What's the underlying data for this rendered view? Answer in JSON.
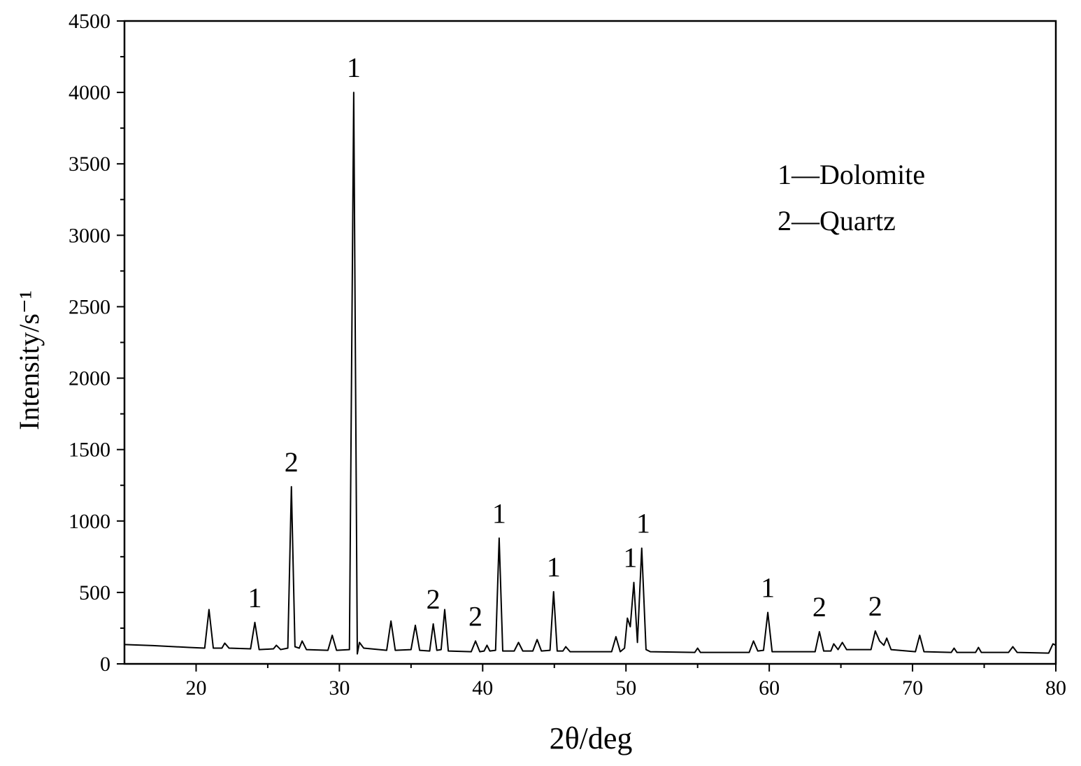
{
  "chart_data": {
    "type": "line",
    "x_label": "2θ/deg",
    "y_label": "Intensity/s⁻¹",
    "x": [
      15,
      17,
      19.5,
      20.6,
      20.9,
      21.2,
      21.8,
      22.0,
      22.3,
      23.8,
      24.1,
      24.4,
      25.4,
      25.6,
      25.9,
      26.4,
      26.65,
      26.9,
      27.2,
      27.4,
      27.7,
      29.2,
      29.5,
      29.8,
      30.7,
      31.0,
      31.25,
      31.4,
      31.7,
      33.3,
      33.6,
      33.9,
      35.0,
      35.3,
      35.6,
      36.3,
      36.55,
      36.8,
      37.1,
      37.35,
      37.6,
      39.2,
      39.5,
      39.8,
      40.1,
      40.3,
      40.5,
      40.9,
      41.15,
      41.4,
      42.2,
      42.5,
      42.8,
      43.5,
      43.8,
      44.1,
      44.7,
      44.95,
      45.2,
      45.6,
      45.8,
      46.1,
      49.0,
      49.3,
      49.6,
      49.9,
      50.1,
      50.3,
      50.55,
      50.8,
      51.1,
      51.4,
      51.7,
      54.8,
      55.0,
      55.2,
      58.6,
      58.9,
      59.2,
      59.6,
      59.9,
      60.2,
      63.2,
      63.5,
      63.8,
      64.3,
      64.5,
      64.8,
      65.1,
      65.4,
      67.1,
      67.4,
      67.7,
      68.0,
      68.2,
      68.5,
      70.2,
      70.5,
      70.8,
      72.7,
      72.9,
      73.1,
      74.4,
      74.6,
      74.8,
      76.7,
      77.0,
      77.3,
      79.5,
      79.8,
      80
    ],
    "series": [
      {
        "name": "XRD pattern",
        "color": "#000000",
        "values": [
          135,
          128,
          115,
          110,
          380,
          110,
          110,
          145,
          110,
          105,
          290,
          100,
          105,
          130,
          100,
          110,
          1240,
          120,
          110,
          160,
          100,
          95,
          200,
          95,
          100,
          4000,
          70,
          150,
          110,
          95,
          300,
          95,
          100,
          270,
          95,
          90,
          280,
          95,
          100,
          380,
          90,
          85,
          160,
          85,
          90,
          130,
          90,
          95,
          880,
          90,
          90,
          150,
          90,
          90,
          170,
          90,
          95,
          505,
          90,
          90,
          120,
          85,
          85,
          190,
          85,
          110,
          320,
          260,
          570,
          150,
          810,
          100,
          85,
          80,
          110,
          80,
          80,
          160,
          90,
          95,
          360,
          85,
          85,
          225,
          90,
          90,
          140,
          100,
          150,
          100,
          100,
          230,
          160,
          130,
          180,
          100,
          85,
          200,
          85,
          80,
          110,
          80,
          80,
          115,
          80,
          80,
          120,
          80,
          75,
          140,
          130
        ]
      }
    ],
    "xlim": [
      15,
      80
    ],
    "xticks": [
      20,
      30,
      40,
      50,
      60,
      70,
      80
    ],
    "ylim": [
      0,
      4500
    ],
    "yticks": [
      0,
      500,
      1000,
      1500,
      2000,
      2500,
      3000,
      3500,
      4000,
      4500
    ],
    "annotations": [
      {
        "text": "1",
        "x": 24.1,
        "y": 290
      },
      {
        "text": "2",
        "x": 26.65,
        "y": 1240
      },
      {
        "text": "1",
        "x": 31.0,
        "y": 4000
      },
      {
        "text": "2",
        "x": 36.55,
        "y": 280
      },
      {
        "text": "2",
        "x": 39.5,
        "y": 160
      },
      {
        "text": "1",
        "x": 41.15,
        "y": 880
      },
      {
        "text": "1",
        "x": 44.95,
        "y": 505
      },
      {
        "text": "1",
        "x": 50.3,
        "y": 570
      },
      {
        "text": "1",
        "x": 51.2,
        "y": 810
      },
      {
        "text": "1",
        "x": 59.9,
        "y": 360
      },
      {
        "text": "2",
        "x": 63.5,
        "y": 225
      },
      {
        "text": "2",
        "x": 67.4,
        "y": 230
      }
    ],
    "legend_notes": [
      "1—Dolomite",
      "2—Quartz"
    ]
  }
}
